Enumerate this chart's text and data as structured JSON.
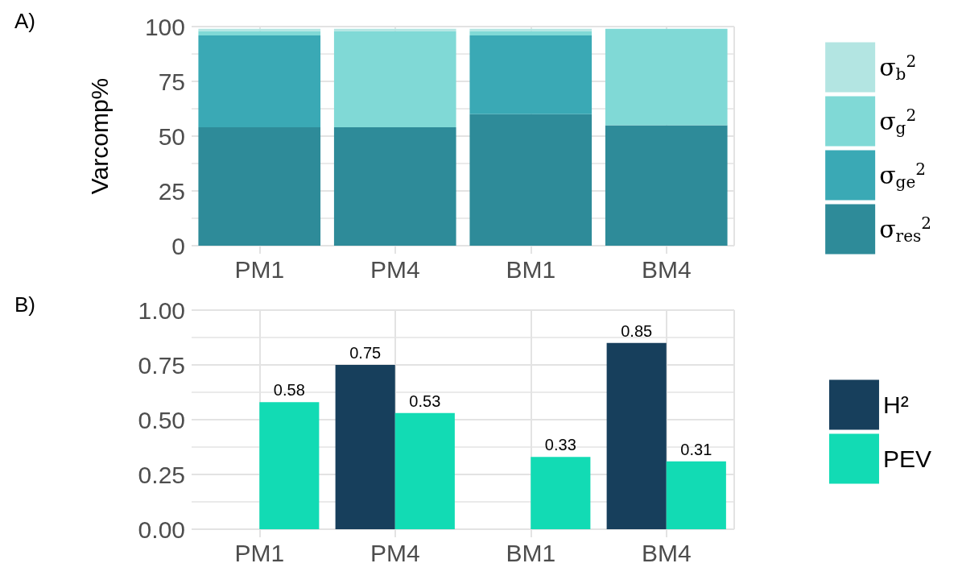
{
  "chart_data": [
    {
      "type": "bar",
      "stacked": true,
      "ylabel": "Varcomp%",
      "annotations": [
        "A)"
      ],
      "categories": [
        "PM1",
        "PM4",
        "BM1",
        "BM4"
      ],
      "ylim": [
        0,
        100
      ],
      "yticks": [
        0,
        25,
        50,
        75,
        100
      ],
      "grid": true,
      "legend": "right",
      "series": [
        {
          "name": "σ$_{res}$$^{2}$",
          "color": "#2e8b99",
          "values": [
            54,
            54,
            60,
            55
          ]
        },
        {
          "name": "σ$_{ge}$$^{2}$",
          "color": "#3aa9b5",
          "values": [
            42,
            0,
            36,
            0
          ]
        },
        {
          "name": "σ$_{g}$$^{2}$",
          "color": "#80d9d6",
          "values": [
            2,
            44,
            2,
            44
          ]
        },
        {
          "name": "σ$_{b}$$^{2}$",
          "color": "#b3e5e2",
          "values": [
            1,
            1,
            1,
            0
          ]
        }
      ]
    },
    {
      "type": "bar",
      "annotations": [
        "B)"
      ],
      "categories": [
        "PM1",
        "PM4",
        "BM1",
        "BM4"
      ],
      "ylim": [
        0,
        1
      ],
      "yticks": [
        {
          "value": 0,
          "label": "0.00"
        },
        {
          "value": 0.25,
          "label": "0.25"
        },
        {
          "value": 0.5,
          "label": "0.50"
        },
        {
          "value": 0.75,
          "label": "0.75"
        },
        {
          "value": 1,
          "label": "1.00"
        }
      ],
      "grid": true,
      "legend": "right",
      "data_labels": true,
      "series": [
        {
          "name": "H²",
          "color": "#173f5c",
          "values": [
            null,
            0.75,
            null,
            0.85
          ]
        },
        {
          "name": "PEV",
          "color": "#12dbb4",
          "values": [
            0.58,
            0.53,
            0.33,
            0.31
          ]
        }
      ]
    }
  ]
}
